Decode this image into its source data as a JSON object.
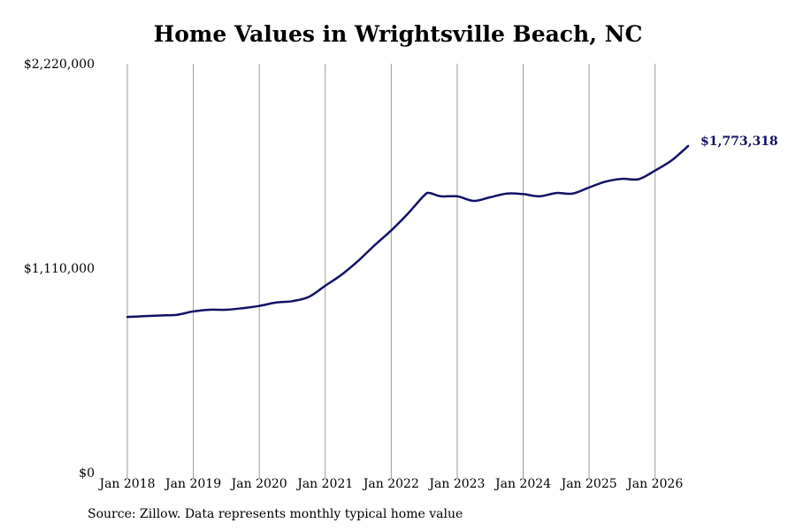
{
  "chart_data": {
    "type": "line",
    "title": "Home Values in Wrightsville Beach, NC",
    "xlabel": "",
    "ylabel": "",
    "ylim": [
      0,
      2220000
    ],
    "y_ticks": [
      "$0",
      "$1,110,000",
      "$2,220,000"
    ],
    "x_ticks": [
      "Jan 2018",
      "Jan 2019",
      "Jan 2020",
      "Jan 2021",
      "Jan 2022",
      "Jan 2023",
      "Jan 2024",
      "Jan 2025",
      "Jan 2026"
    ],
    "x_range": [
      "2018-01",
      "2026-07"
    ],
    "grid": "vertical",
    "line_color": "#111166",
    "end_label": "$1,773,318",
    "series": [
      {
        "points": [
          [
            "2018-01",
            845000
          ],
          [
            "2018-04",
            849000
          ],
          [
            "2018-07",
            853000
          ],
          [
            "2018-10",
            857000
          ],
          [
            "2019-01",
            875000
          ],
          [
            "2019-04",
            884000
          ],
          [
            "2019-07",
            884000
          ],
          [
            "2019-10",
            893000
          ],
          [
            "2020-01",
            905000
          ],
          [
            "2020-04",
            923000
          ],
          [
            "2020-07",
            931000
          ],
          [
            "2020-10",
            954000
          ],
          [
            "2021-01",
            1015000
          ],
          [
            "2021-04",
            1075000
          ],
          [
            "2021-07",
            1150000
          ],
          [
            "2021-10",
            1235000
          ],
          [
            "2022-01",
            1315000
          ],
          [
            "2022-04",
            1405000
          ],
          [
            "2022-07",
            1505000
          ],
          [
            "2022-08",
            1518000
          ],
          [
            "2022-10",
            1500000
          ],
          [
            "2023-01",
            1500000
          ],
          [
            "2023-04",
            1475000
          ],
          [
            "2023-07",
            1495000
          ],
          [
            "2023-10",
            1515000
          ],
          [
            "2024-01",
            1512000
          ],
          [
            "2024-04",
            1500000
          ],
          [
            "2024-07",
            1518000
          ],
          [
            "2024-10",
            1515000
          ],
          [
            "2025-01",
            1548000
          ],
          [
            "2025-04",
            1580000
          ],
          [
            "2025-07",
            1595000
          ],
          [
            "2025-10",
            1593000
          ],
          [
            "2026-01",
            1640000
          ],
          [
            "2026-04",
            1695000
          ],
          [
            "2026-07",
            1773318
          ]
        ]
      }
    ]
  },
  "source_note": "Source: Zillow. Data represents monthly typical home value"
}
